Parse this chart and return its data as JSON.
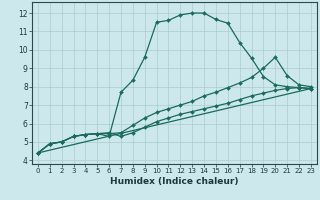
{
  "xlabel": "Humidex (Indice chaleur)",
  "bg_color": "#cce8ec",
  "grid_color": "#aacccc",
  "line_color": "#1a6b5a",
  "xlim": [
    -0.5,
    23.5
  ],
  "ylim": [
    3.8,
    12.6
  ],
  "xticks": [
    0,
    1,
    2,
    3,
    4,
    5,
    6,
    7,
    8,
    9,
    10,
    11,
    12,
    13,
    14,
    15,
    16,
    17,
    18,
    19,
    20,
    21,
    22,
    23
  ],
  "yticks": [
    4,
    5,
    6,
    7,
    8,
    9,
    10,
    11,
    12
  ],
  "lines": [
    {
      "x": [
        0,
        1,
        2,
        3,
        4,
        5,
        6,
        7,
        8,
        9,
        10,
        11,
        12,
        13,
        14,
        15,
        16,
        17,
        18,
        19,
        20,
        21,
        22,
        23
      ],
      "y": [
        4.4,
        4.9,
        5.0,
        5.3,
        5.4,
        5.45,
        5.3,
        7.7,
        8.35,
        9.6,
        11.5,
        11.6,
        11.9,
        12.0,
        12.0,
        11.65,
        11.45,
        10.4,
        9.55,
        8.55,
        8.1,
        8.0,
        7.95,
        7.9
      ],
      "has_marker": true
    },
    {
      "x": [
        0,
        1,
        2,
        3,
        4,
        5,
        6,
        7,
        8,
        9,
        10,
        11,
        12,
        13,
        14,
        15,
        16,
        17,
        18,
        19,
        20,
        21,
        22,
        23
      ],
      "y": [
        4.4,
        4.9,
        5.0,
        5.3,
        5.4,
        5.45,
        5.45,
        5.5,
        5.9,
        6.3,
        6.6,
        6.8,
        7.0,
        7.2,
        7.5,
        7.7,
        7.95,
        8.2,
        8.5,
        9.0,
        9.6,
        8.6,
        8.1,
        8.0
      ],
      "has_marker": true
    },
    {
      "x": [
        0,
        1,
        2,
        3,
        4,
        5,
        6,
        7,
        8,
        9,
        10,
        11,
        12,
        13,
        14,
        15,
        16,
        17,
        18,
        19,
        20,
        21,
        22,
        23
      ],
      "y": [
        4.4,
        4.9,
        5.0,
        5.3,
        5.4,
        5.45,
        5.5,
        5.3,
        5.5,
        5.8,
        6.1,
        6.3,
        6.5,
        6.65,
        6.8,
        6.95,
        7.1,
        7.3,
        7.5,
        7.65,
        7.8,
        7.9,
        7.95,
        7.9
      ],
      "has_marker": true
    },
    {
      "x": [
        0,
        23
      ],
      "y": [
        4.4,
        7.9
      ],
      "has_marker": false
    }
  ]
}
